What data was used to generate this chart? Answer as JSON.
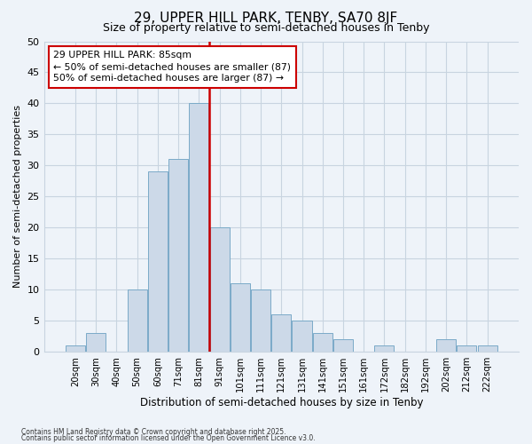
{
  "title": "29, UPPER HILL PARK, TENBY, SA70 8JF",
  "subtitle": "Size of property relative to semi-detached houses in Tenby",
  "xlabel": "Distribution of semi-detached houses by size in Tenby",
  "ylabel": "Number of semi-detached properties",
  "bar_labels": [
    "20sqm",
    "30sqm",
    "40sqm",
    "50sqm",
    "60sqm",
    "71sqm",
    "81sqm",
    "91sqm",
    "101sqm",
    "111sqm",
    "121sqm",
    "131sqm",
    "141sqm",
    "151sqm",
    "161sqm",
    "172sqm",
    "182sqm",
    "192sqm",
    "202sqm",
    "212sqm",
    "222sqm"
  ],
  "bar_values": [
    1,
    3,
    0,
    10,
    29,
    31,
    40,
    20,
    11,
    10,
    6,
    5,
    3,
    2,
    0,
    1,
    0,
    0,
    2,
    1,
    1
  ],
  "bar_color": "#ccd9e8",
  "bar_edge_color": "#7aaac8",
  "median_label": "29 UPPER HILL PARK: 85sqm",
  "smaller_label": "← 50% of semi-detached houses are smaller (87)",
  "larger_label": "50% of semi-detached houses are larger (87) →",
  "vline_color": "#cc0000",
  "vline_x": 7,
  "ylim": [
    0,
    50
  ],
  "yticks": [
    0,
    5,
    10,
    15,
    20,
    25,
    30,
    35,
    40,
    45,
    50
  ],
  "footnote1": "Contains HM Land Registry data © Crown copyright and database right 2025.",
  "footnote2": "Contains public sector information licensed under the Open Government Licence v3.0.",
  "background_color": "#eef3f9",
  "plot_background": "#eef3f9",
  "grid_color": "#c8d4e0",
  "title_fontsize": 11,
  "subtitle_fontsize": 9
}
